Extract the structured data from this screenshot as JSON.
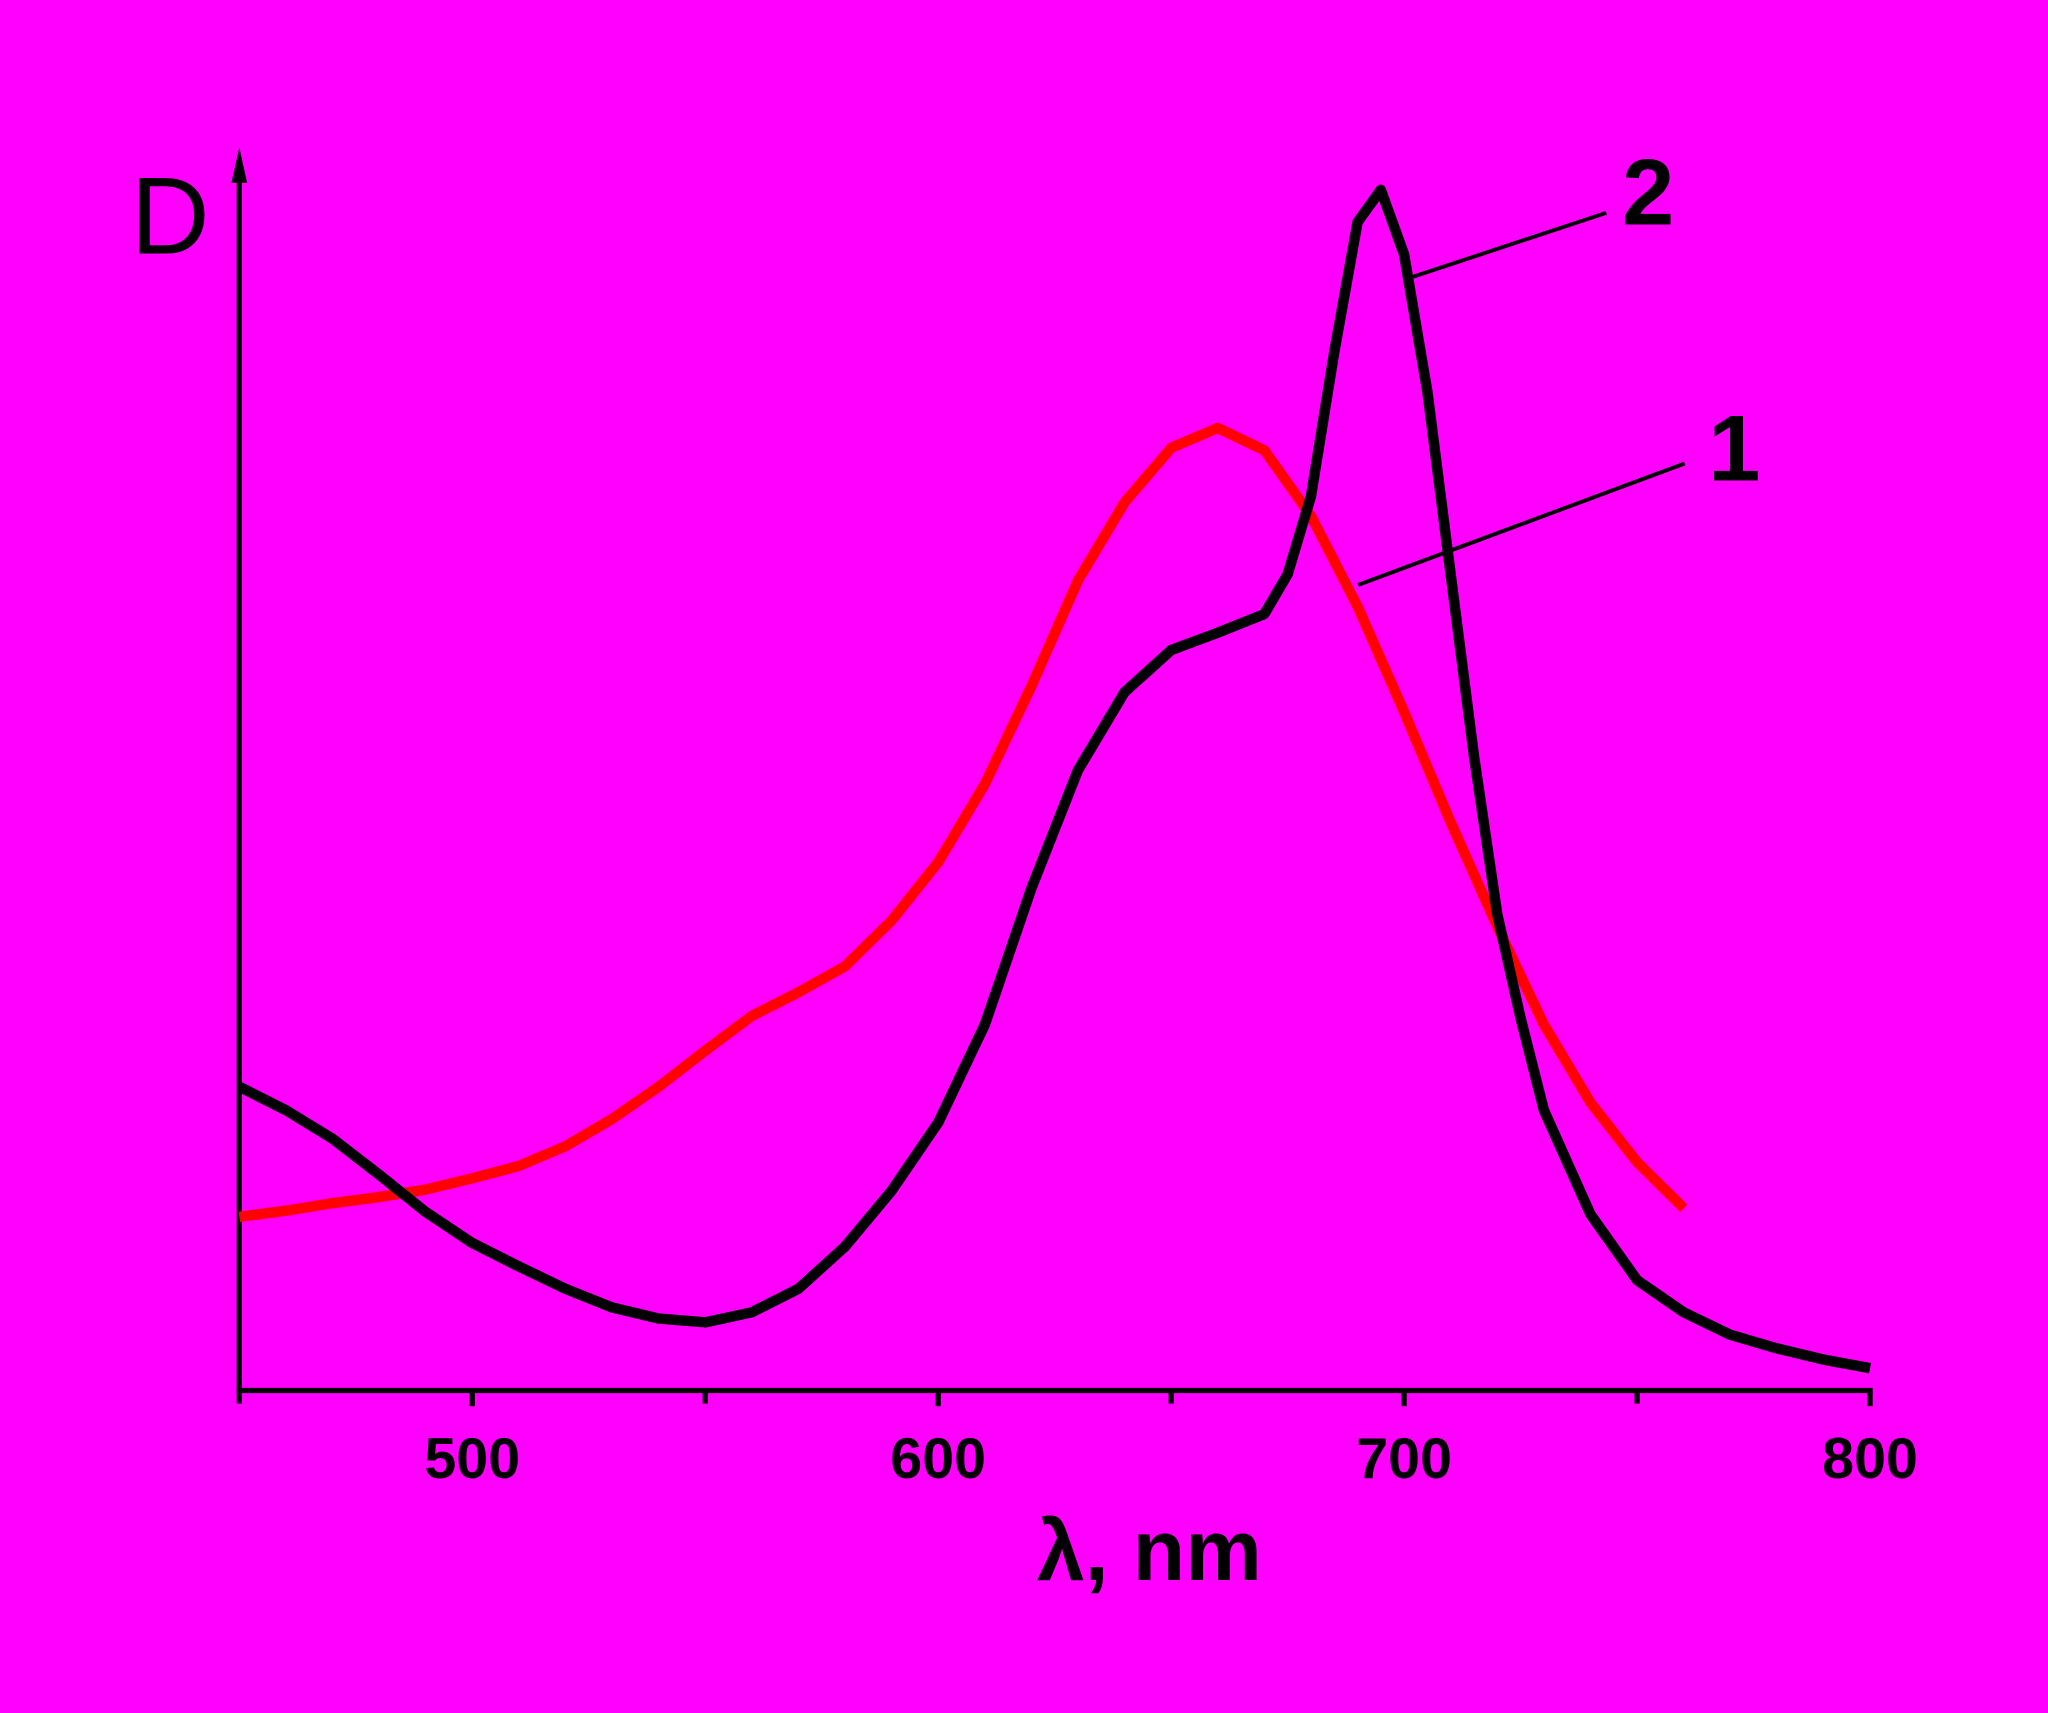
{
  "chart_data": {
    "type": "line",
    "ylabel": "D",
    "xlabel": "λ, nm",
    "xlim": [
      450,
      800
    ],
    "xticks": [
      500,
      600,
      700,
      800
    ],
    "xminor_ticks": [
      450,
      550,
      650,
      750
    ],
    "ylim": [
      0,
      1
    ],
    "grid": false,
    "series": [
      {
        "name": "1",
        "color": "#ff0000",
        "x": [
          450,
          460,
          470,
          480,
          490,
          500,
          510,
          520,
          530,
          540,
          550,
          560,
          570,
          580,
          590,
          600,
          610,
          620,
          630,
          640,
          650,
          660,
          670,
          680,
          690,
          700,
          710,
          720,
          730,
          740,
          750,
          760
        ],
        "values": [
          0.14,
          0.145,
          0.151,
          0.156,
          0.162,
          0.171,
          0.181,
          0.197,
          0.219,
          0.245,
          0.274,
          0.302,
          0.321,
          0.342,
          0.379,
          0.426,
          0.489,
          0.568,
          0.653,
          0.716,
          0.76,
          0.776,
          0.758,
          0.705,
          0.632,
          0.547,
          0.458,
          0.374,
          0.295,
          0.232,
          0.184,
          0.147
        ]
      },
      {
        "name": "2",
        "color": "#000000",
        "x": [
          450,
          460,
          470,
          480,
          490,
          500,
          510,
          520,
          530,
          540,
          550,
          560,
          570,
          580,
          590,
          600,
          610,
          620,
          630,
          640,
          650,
          660,
          670,
          675,
          680,
          685,
          690,
          695,
          700,
          705,
          710,
          715,
          720,
          725,
          730,
          740,
          750,
          760,
          770,
          780,
          790,
          800
        ],
        "values": [
          0.245,
          0.226,
          0.203,
          0.174,
          0.144,
          0.119,
          0.1,
          0.082,
          0.067,
          0.058,
          0.055,
          0.063,
          0.082,
          0.116,
          0.161,
          0.216,
          0.295,
          0.405,
          0.5,
          0.563,
          0.597,
          0.611,
          0.626,
          0.658,
          0.721,
          0.837,
          0.942,
          0.968,
          0.916,
          0.805,
          0.658,
          0.511,
          0.384,
          0.3,
          0.226,
          0.142,
          0.089,
          0.063,
          0.045,
          0.034,
          0.025,
          0.018
        ]
      }
    ]
  }
}
